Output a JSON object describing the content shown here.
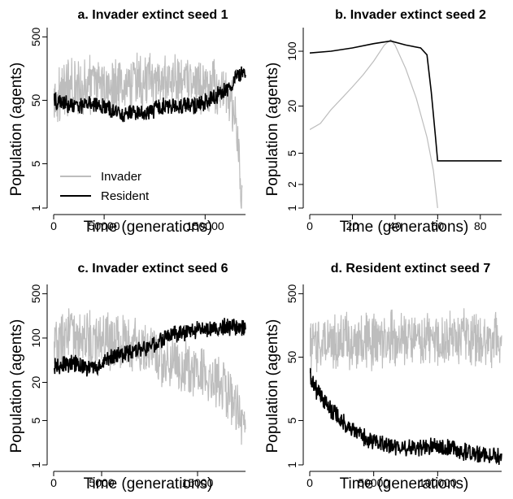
{
  "chart_data": [
    {
      "type": "line",
      "title": "a. Invader extinct seed 1",
      "xlabel": "Time (generations)",
      "ylabel": "Population (agents)",
      "y_scale": "log",
      "xlim": [
        0,
        190000
      ],
      "ylim": [
        1,
        700
      ],
      "x_ticks": [
        {
          "value": 0,
          "label": "0"
        },
        {
          "value": 50000,
          "label": "50000"
        },
        {
          "value": 150000,
          "label": "150000"
        }
      ],
      "y_ticks": [
        {
          "value": 1,
          "label": "1"
        },
        {
          "value": 5,
          "label": "5"
        },
        {
          "value": 50,
          "label": "50"
        },
        {
          "value": 500,
          "label": "500"
        }
      ],
      "legend": {
        "position": "bottom-left",
        "entries": [
          {
            "label": "Invader",
            "color": "#bdbdbd"
          },
          {
            "label": "Resident",
            "color": "#000000"
          }
        ]
      },
      "series": [
        {
          "name": "Invader",
          "color": "#bdbdbd",
          "noisy": true,
          "x": [
            0,
            20000,
            50000,
            80000,
            100000,
            130000,
            160000,
            175000,
            180000,
            184000,
            187000
          ],
          "y": [
            60,
            80,
            90,
            100,
            95,
            90,
            80,
            50,
            20,
            5,
            1
          ]
        },
        {
          "name": "Resident",
          "color": "#000000",
          "noisy": true,
          "x": [
            0,
            20000,
            40000,
            70000,
            90000,
            110000,
            140000,
            160000,
            175000,
            180000,
            190000
          ],
          "y": [
            50,
            40,
            45,
            30,
            32,
            40,
            42,
            55,
            80,
            120,
            130
          ]
        }
      ]
    },
    {
      "type": "line",
      "title": "b. Invader extinct seed 2",
      "xlabel": "Time (generations)",
      "ylabel": "Population (agents)",
      "y_scale": "log",
      "xlim": [
        0,
        90
      ],
      "ylim": [
        1,
        200
      ],
      "x_ticks": [
        {
          "value": 0,
          "label": "0"
        },
        {
          "value": 20,
          "label": "20"
        },
        {
          "value": 40,
          "label": "40"
        },
        {
          "value": 60,
          "label": "60"
        },
        {
          "value": 80,
          "label": "80"
        }
      ],
      "y_ticks": [
        {
          "value": 1,
          "label": "1"
        },
        {
          "value": 2,
          "label": "2"
        },
        {
          "value": 5,
          "label": "5"
        },
        {
          "value": 20,
          "label": "20"
        },
        {
          "value": 100,
          "label": "100"
        }
      ],
      "series": [
        {
          "name": "Invader",
          "color": "#bdbdbd",
          "noisy": false,
          "x": [
            0,
            5,
            10,
            15,
            20,
            25,
            30,
            35,
            38,
            40,
            45,
            50,
            55,
            58,
            60
          ],
          "y": [
            10,
            12,
            18,
            25,
            35,
            50,
            75,
            120,
            140,
            120,
            60,
            25,
            8,
            3,
            1
          ]
        },
        {
          "name": "Resident",
          "color": "#000000",
          "noisy": false,
          "x": [
            0,
            10,
            20,
            30,
            38,
            45,
            52,
            55,
            57,
            59,
            60,
            65,
            90
          ],
          "y": [
            95,
            100,
            110,
            125,
            135,
            120,
            110,
            90,
            30,
            8,
            4,
            4,
            4
          ]
        }
      ]
    },
    {
      "type": "line",
      "title": "c. Invader extinct seed 6",
      "xlabel": "Time (generations)",
      "ylabel": "Population (agents)",
      "y_scale": "log",
      "xlim": [
        0,
        20000
      ],
      "ylim": [
        1,
        700
      ],
      "x_ticks": [
        {
          "value": 0,
          "label": "0"
        },
        {
          "value": 5000,
          "label": "5000"
        },
        {
          "value": 15000,
          "label": "15000"
        }
      ],
      "y_ticks": [
        {
          "value": 1,
          "label": "1"
        },
        {
          "value": 5,
          "label": "5"
        },
        {
          "value": 20,
          "label": "20"
        },
        {
          "value": 100,
          "label": "100"
        },
        {
          "value": 500,
          "label": "500"
        }
      ],
      "series": [
        {
          "name": "Invader",
          "color": "#bdbdbd",
          "noisy": true,
          "x": [
            0,
            2000,
            5000,
            8000,
            10000,
            13000,
            16000,
            18000,
            19500,
            20000
          ],
          "y": [
            80,
            100,
            90,
            80,
            60,
            40,
            25,
            15,
            5,
            3
          ]
        },
        {
          "name": "Resident",
          "color": "#000000",
          "noisy": true,
          "x": [
            0,
            2000,
            4000,
            6000,
            8000,
            10000,
            12000,
            15000,
            18000,
            20000
          ],
          "y": [
            35,
            40,
            32,
            50,
            60,
            70,
            110,
            140,
            150,
            140
          ]
        }
      ]
    },
    {
      "type": "line",
      "title": "d. Resident extinct seed 7",
      "xlabel": "Time (generations)",
      "ylabel": "Population (agents)",
      "y_scale": "log",
      "xlim": [
        0,
        150000
      ],
      "ylim": [
        1,
        700
      ],
      "x_ticks": [
        {
          "value": 0,
          "label": "0"
        },
        {
          "value": 50000,
          "label": "50000"
        },
        {
          "value": 100000,
          "label": "100000"
        }
      ],
      "y_ticks": [
        {
          "value": 1,
          "label": "1"
        },
        {
          "value": 5,
          "label": "5"
        },
        {
          "value": 50,
          "label": "50"
        },
        {
          "value": 500,
          "label": "500"
        }
      ],
      "series": [
        {
          "name": "Invader",
          "color": "#bdbdbd",
          "noisy": true,
          "x": [
            0,
            30000,
            60000,
            90000,
            120000,
            150000
          ],
          "y": [
            80,
            90,
            100,
            95,
            100,
            90
          ]
        },
        {
          "name": "Resident",
          "color": "#000000",
          "noisy": true,
          "x": [
            0,
            5000,
            15000,
            30000,
            45000,
            60000,
            80000,
            100000,
            120000,
            135000,
            150000
          ],
          "y": [
            25,
            15,
            8,
            4,
            2.5,
            2,
            1.8,
            2,
            1.6,
            1.5,
            1.3
          ]
        }
      ]
    }
  ]
}
